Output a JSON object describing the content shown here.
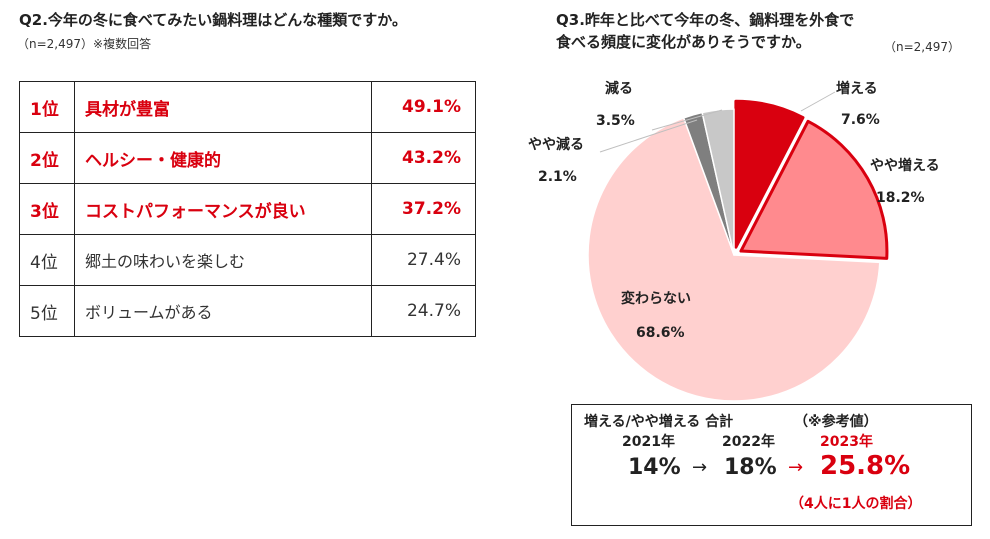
{
  "left": {
    "title": "Q2.今年の冬に食べてみたい鍋料理はどんな種類ですか。",
    "sample": "（n=2,497）※複数回答",
    "rows": [
      {
        "rank": "1位",
        "label": "具材が豊富",
        "value": "49.1%"
      },
      {
        "rank": "2位",
        "label": "ヘルシー・健康的",
        "value": "43.2%"
      },
      {
        "rank": "3位",
        "label": "コストパフォーマンスが良い",
        "value": "37.2%"
      },
      {
        "rank": "4位",
        "label": "郷土の味わいを楽しむ",
        "value": "27.4%"
      },
      {
        "rank": "5位",
        "label": "ボリュームがある",
        "value": "24.7%"
      }
    ]
  },
  "right": {
    "title_line1": "Q3.昨年と比べて今年の冬、鍋料理を外食で",
    "title_line2": "食べる頻度に変化がありそうですか。",
    "sample": "（n=2,497）"
  },
  "chart_data": {
    "type": "pie",
    "slices": [
      {
        "name": "増える",
        "value": 7.6,
        "label": "7.6%",
        "color": "#d9000f"
      },
      {
        "name": "やや増える",
        "value": 18.2,
        "label": "18.2%",
        "color": "#ff8a8e"
      },
      {
        "name": "変わらない",
        "value": 68.6,
        "label": "68.6%",
        "color": "#ffd0cf"
      },
      {
        "name": "やや減る",
        "value": 2.1,
        "label": "2.1%",
        "color": "#7f7f7f"
      },
      {
        "name": "減る",
        "value": 3.5,
        "label": "3.5%",
        "color": "#c8c8c8"
      }
    ],
    "exploded": [
      "増える",
      "やや増える"
    ],
    "highlight_color": "#d9000f"
  },
  "summary": {
    "heading": "増える/やや増える 合計",
    "note": "（※参考値）",
    "years": [
      "2021年",
      "2022年",
      "2023年"
    ],
    "v2021": "14%",
    "arrow": "→",
    "v2022": "18%",
    "v2023": "25.8%",
    "ratio": "（4人に1人の割合）"
  }
}
